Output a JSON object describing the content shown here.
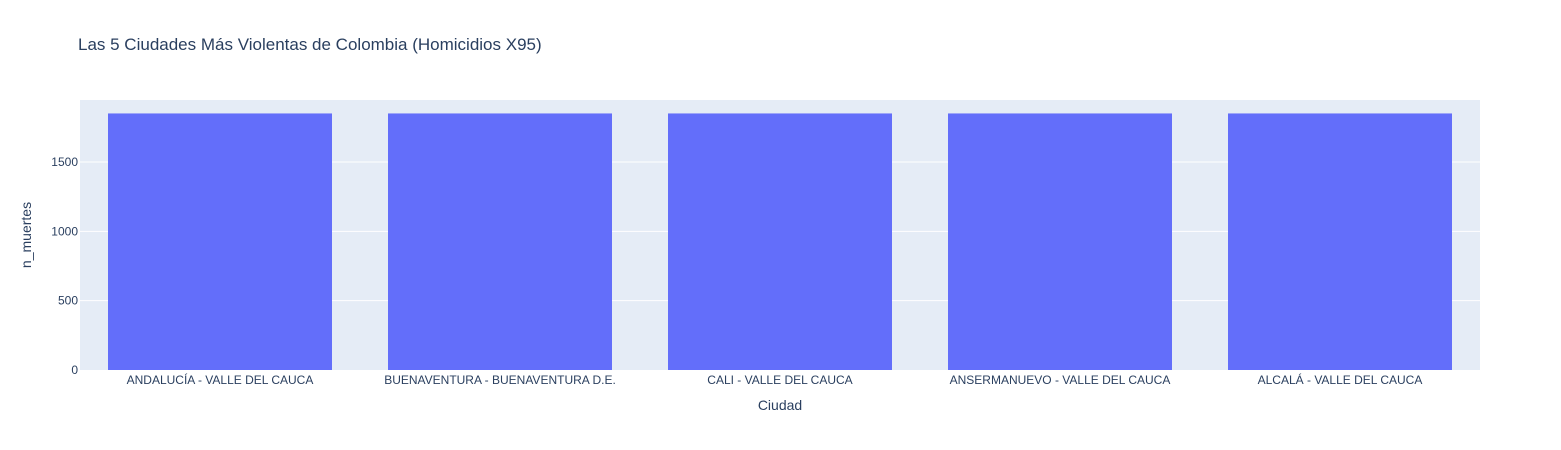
{
  "chart_data": {
    "type": "bar",
    "title": "Las 5 Ciudades Más Violentas de Colombia (Homicidios X95)",
    "xlabel": "Ciudad",
    "ylabel": "n_muertes",
    "categories": [
      "ANDALUCÍA - VALLE DEL CAUCA",
      "BUENAVENTURA - BUENAVENTURA D.E.",
      "CALI - VALLE DEL CAUCA",
      "ANSERMANUEVO - VALLE DEL CAUCA",
      "ALCALÁ - VALLE DEL CAUCA"
    ],
    "values": [
      1850,
      1850,
      1850,
      1850,
      1850
    ],
    "ylim": [
      0,
      1947
    ],
    "yticks": [
      0,
      500,
      1000,
      1500
    ],
    "grid": true,
    "colors": {
      "bar": "#636efa",
      "plot_bg": "#e5ecf6",
      "paper_bg": "#ffffff",
      "grid": "#ffffff",
      "text": "#2a3f5f"
    }
  }
}
